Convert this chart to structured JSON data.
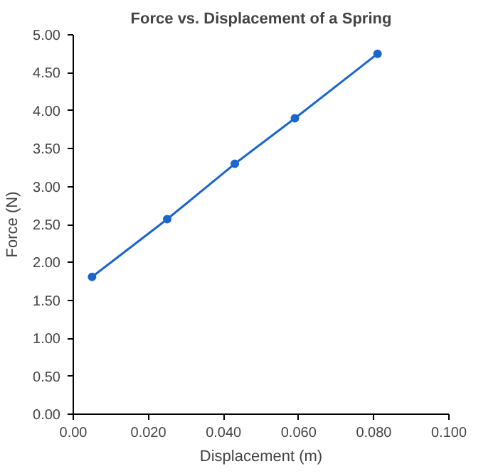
{
  "chart_data": {
    "type": "line",
    "title": "Force vs. Displacement of a Spring",
    "xlabel": "Displacement (m)",
    "ylabel": "Force (N)",
    "x": [
      0.005,
      0.025,
      0.043,
      0.059,
      0.081
    ],
    "series": [
      {
        "color": "#1a66cc",
        "values": [
          1.81,
          2.57,
          3.3,
          3.9,
          4.75
        ]
      }
    ],
    "xlim": [
      0,
      0.1
    ],
    "xticks": [
      {
        "value": 0,
        "label": "0.00"
      },
      {
        "value": 0.02,
        "label": "0.020"
      },
      {
        "value": 0.04,
        "label": "0.040"
      },
      {
        "value": 0.06,
        "label": "0.060"
      },
      {
        "value": 0.08,
        "label": "0.080"
      },
      {
        "value": 0.1,
        "label": "0.100"
      }
    ],
    "ylim": [
      0,
      5
    ],
    "yticks": [
      {
        "value": 0,
        "label": "0.00"
      },
      {
        "value": 0.5,
        "label": "0.50"
      },
      {
        "value": 1,
        "label": "1.00"
      },
      {
        "value": 1.5,
        "label": "1.50"
      },
      {
        "value": 2,
        "label": "2.00"
      },
      {
        "value": 2.5,
        "label": "2.50"
      },
      {
        "value": 3,
        "label": "3.00"
      },
      {
        "value": 3.5,
        "label": "3.50"
      },
      {
        "value": 4,
        "label": "4.00"
      },
      {
        "value": 4.5,
        "label": "4.50"
      },
      {
        "value": 5,
        "label": "5.00"
      }
    ],
    "grid": false,
    "marker": "circle",
    "line_style": "solid"
  }
}
